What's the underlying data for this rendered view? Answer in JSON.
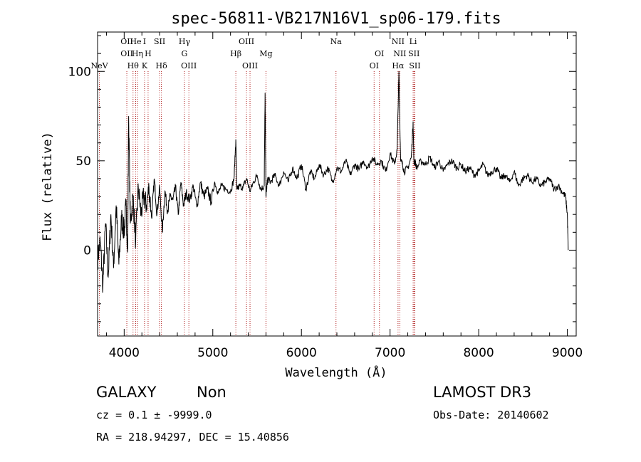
{
  "chart_data": {
    "type": "line",
    "title": "spec-56811-VB217N16V1_sp06-179.fits",
    "xlabel": "Wavelength (Å)",
    "ylabel": "Flux (relative)",
    "xlim": [
      3700,
      9100
    ],
    "ylim": [
      -48,
      122
    ],
    "xticks": [
      {
        "value": 4000,
        "label": "4000"
      },
      {
        "value": 5000,
        "label": "5000"
      },
      {
        "value": 6000,
        "label": "6000"
      },
      {
        "value": 7000,
        "label": "7000"
      },
      {
        "value": 8000,
        "label": "8000"
      },
      {
        "value": 9000,
        "label": "9000"
      }
    ],
    "yticks": [
      {
        "value": 0,
        "label": "0"
      },
      {
        "value": 50,
        "label": "50"
      },
      {
        "value": 100,
        "label": "100"
      }
    ],
    "spectrum": {
      "x": [
        3700,
        3730,
        3760,
        3790,
        3820,
        3850,
        3880,
        3910,
        3940,
        3970,
        4000,
        4020,
        4040,
        4050,
        4070,
        4100,
        4130,
        4160,
        4190,
        4220,
        4250,
        4280,
        4310,
        4340,
        4370,
        4400,
        4430,
        4460,
        4490,
        4520,
        4550,
        4580,
        4610,
        4640,
        4670,
        4700,
        4740,
        4780,
        4820,
        4860,
        4900,
        4940,
        4980,
        5020,
        5060,
        5100,
        5150,
        5200,
        5240,
        5260,
        5270,
        5280,
        5300,
        5340,
        5380,
        5420,
        5460,
        5500,
        5540,
        5580,
        5590,
        5600,
        5610,
        5620,
        5650,
        5700,
        5750,
        5800,
        5850,
        5900,
        5950,
        6000,
        6050,
        6100,
        6150,
        6200,
        6250,
        6300,
        6350,
        6400,
        6450,
        6500,
        6550,
        6600,
        6650,
        6700,
        6750,
        6800,
        6850,
        6900,
        6950,
        7000,
        7050,
        7080,
        7100,
        7110,
        7120,
        7140,
        7160,
        7200,
        7240,
        7260,
        7270,
        7280,
        7300,
        7350,
        7400,
        7450,
        7500,
        7550,
        7600,
        7650,
        7700,
        7750,
        7800,
        7850,
        7900,
        7950,
        8000,
        8050,
        8100,
        8150,
        8200,
        8250,
        8300,
        8350,
        8400,
        8450,
        8500,
        8550,
        8600,
        8650,
        8700,
        8750,
        8800,
        8850,
        8900,
        8950,
        8980,
        9000,
        9010
      ],
      "y": [
        -5,
        5,
        -20,
        15,
        -15,
        20,
        -10,
        25,
        -8,
        18,
        10,
        25,
        0,
        75,
        15,
        30,
        5,
        35,
        20,
        30,
        25,
        35,
        18,
        40,
        20,
        35,
        10,
        33,
        22,
        30,
        28,
        35,
        20,
        38,
        25,
        32,
        28,
        36,
        24,
        38,
        30,
        34,
        27,
        38,
        32,
        36,
        34,
        33,
        40,
        62,
        35,
        34,
        36,
        35,
        40,
        33,
        38,
        42,
        34,
        36,
        88,
        30,
        36,
        40,
        38,
        42,
        36,
        44,
        38,
        46,
        40,
        48,
        34,
        44,
        40,
        48,
        42,
        46,
        38,
        46,
        44,
        50,
        42,
        48,
        45,
        50,
        46,
        52,
        48,
        50,
        44,
        54,
        48,
        56,
        100,
        70,
        50,
        48,
        44,
        46,
        52,
        72,
        48,
        50,
        46,
        50,
        48,
        52,
        46,
        50,
        44,
        48,
        50,
        46,
        48,
        44,
        46,
        42,
        44,
        48,
        42,
        44,
        46,
        40,
        42,
        38,
        44,
        36,
        40,
        42,
        38,
        40,
        36,
        38,
        40,
        34,
        36,
        32,
        30,
        20,
        0
      ]
    },
    "lines": [
      {
        "x": 4030,
        "label": "OII",
        "row": 0
      },
      {
        "x": 4030,
        "label": "OII",
        "row": 1
      },
      {
        "x": 4100,
        "label": "Hθ",
        "row": 2
      },
      {
        "x": 4130,
        "label": "He",
        "row": 0
      },
      {
        "x": 4150,
        "label": "Hη",
        "row": 1
      },
      {
        "x": 4230,
        "label": "I",
        "row": 0
      },
      {
        "x": 4230,
        "label": "K",
        "row": 2
      },
      {
        "x": 4270,
        "label": "H",
        "row": 1
      },
      {
        "x": 4400,
        "label": "SII",
        "row": 0
      },
      {
        "x": 4420,
        "label": "Hδ",
        "row": 2
      },
      {
        "x": 4680,
        "label": "Hγ",
        "row": 0
      },
      {
        "x": 4680,
        "label": "G",
        "row": 1
      },
      {
        "x": 4730,
        "label": "OIII",
        "row": 2
      },
      {
        "x": 5260,
        "label": "Hβ",
        "row": 1
      },
      {
        "x": 5380,
        "label": "OIII",
        "row": 0
      },
      {
        "x": 5420,
        "label": "OIII",
        "row": 2
      },
      {
        "x": 5600,
        "label": "Mg",
        "row": 1
      },
      {
        "x": 6390,
        "label": "Na",
        "row": 0
      },
      {
        "x": 6820,
        "label": "OI",
        "row": 2
      },
      {
        "x": 6880,
        "label": "OI",
        "row": 1
      },
      {
        "x": 7090,
        "label": "NII",
        "row": 0
      },
      {
        "x": 7090,
        "label": "Hα",
        "row": 2
      },
      {
        "x": 7110,
        "label": "NII",
        "row": 1
      },
      {
        "x": 7260,
        "label": "Li",
        "row": 0
      },
      {
        "x": 7270,
        "label": "SII",
        "row": 1
      },
      {
        "x": 7280,
        "label": "SII",
        "row": 2
      },
      {
        "x": 3720,
        "label": "NeV",
        "row": 2
      }
    ]
  },
  "info": {
    "class_label": "GALAXY",
    "subclass_label": "Non",
    "survey": "LAMOST DR3",
    "cz": "cz = 0.1 ± -9999.0",
    "obs_date": "Obs-Date: 20140602",
    "radec": "RA = 218.94297, DEC =  15.40856"
  },
  "colors": {
    "line": "#000000",
    "marker": "#b22222"
  }
}
